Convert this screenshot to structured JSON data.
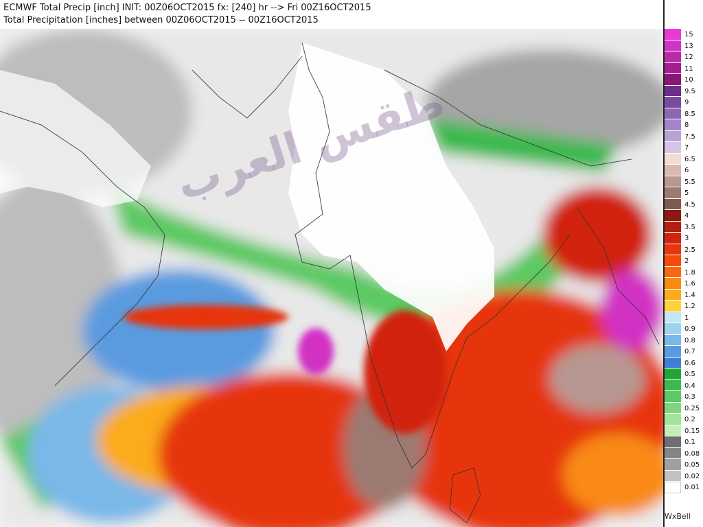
{
  "header": {
    "title_line1": "ECMWF Total Precip [inch] INIT: 00Z06OCT2015 fx: [240] hr --> Fri 00Z16OCT2015",
    "title_line2": "Total Precipitation [inches] between 00Z06OCT2015 -- 00Z16OCT2015"
  },
  "brand": "WxBell",
  "watermark": "طقس العرب",
  "legend": {
    "unit": "inches",
    "levels": [
      {
        "label": "15",
        "color": "#e83ad6"
      },
      {
        "label": "13",
        "color": "#d233c4"
      },
      {
        "label": "12",
        "color": "#bb2aa9"
      },
      {
        "label": "11",
        "color": "#a21f91"
      },
      {
        "label": "10",
        "color": "#8a1677"
      },
      {
        "label": "9.5",
        "color": "#6b2f8a"
      },
      {
        "label": "9",
        "color": "#7a4a9e"
      },
      {
        "label": "8.5",
        "color": "#8d67b3"
      },
      {
        "label": "8",
        "color": "#a384c6"
      },
      {
        "label": "7.5",
        "color": "#b9a2d6"
      },
      {
        "label": "7",
        "color": "#d6c4e6"
      },
      {
        "label": "6.5",
        "color": "#f2dcd6"
      },
      {
        "label": "6",
        "color": "#d9b9b0"
      },
      {
        "label": "5.5",
        "color": "#b79790"
      },
      {
        "label": "5",
        "color": "#9c7a72"
      },
      {
        "label": "4.5",
        "color": "#7d5a52"
      },
      {
        "label": "4",
        "color": "#8b1a10"
      },
      {
        "label": "3.5",
        "color": "#b01f10"
      },
      {
        "label": "3",
        "color": "#d1240f"
      },
      {
        "label": "2.5",
        "color": "#e6360f"
      },
      {
        "label": "2",
        "color": "#f44b0e"
      },
      {
        "label": "1.8",
        "color": "#f7680f"
      },
      {
        "label": "1.6",
        "color": "#f98a12"
      },
      {
        "label": "1.4",
        "color": "#fbab1c"
      },
      {
        "label": "1.2",
        "color": "#fcd33a"
      },
      {
        "label": "1",
        "color": "#c4e6f3"
      },
      {
        "label": "0.9",
        "color": "#9fd2ef"
      },
      {
        "label": "0.8",
        "color": "#7ab8e8"
      },
      {
        "label": "0.7",
        "color": "#5a9be0"
      },
      {
        "label": "0.6",
        "color": "#3f7fd6"
      },
      {
        "label": "0.5",
        "color": "#1fa63a"
      },
      {
        "label": "0.4",
        "color": "#3bb94d"
      },
      {
        "label": "0.3",
        "color": "#5cc962"
      },
      {
        "label": "0.25",
        "color": "#7fd77c"
      },
      {
        "label": "0.2",
        "color": "#a3e39b"
      },
      {
        "label": "0.15",
        "color": "#c3eeb9"
      },
      {
        "label": "0.1",
        "color": "#6e6e6e"
      },
      {
        "label": "0.08",
        "color": "#858585"
      },
      {
        "label": "0.05",
        "color": "#a0a0a0"
      },
      {
        "label": "0.02",
        "color": "#c2c2c2"
      },
      {
        "label": "0.01",
        "color": "#ffffff"
      }
    ]
  }
}
